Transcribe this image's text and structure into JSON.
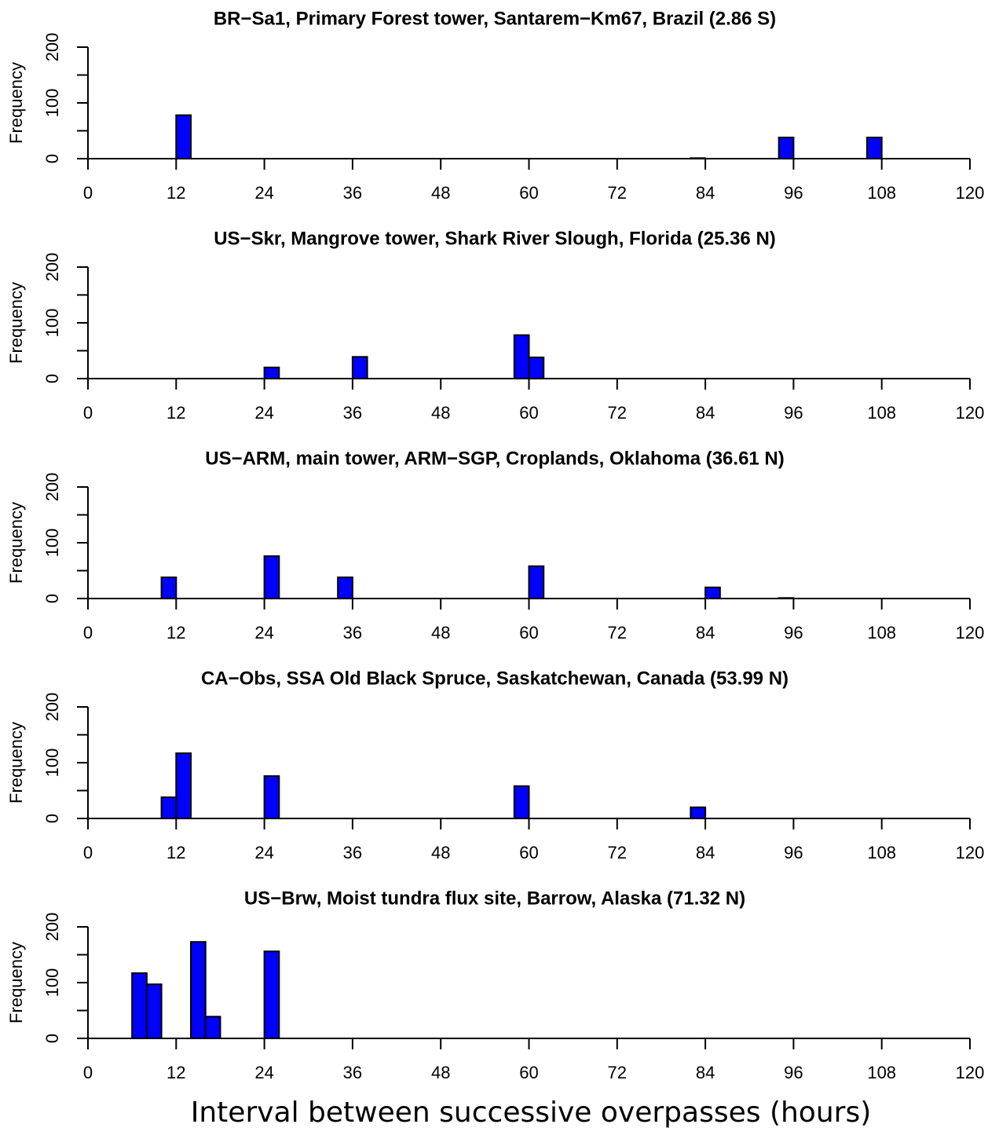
{
  "xlabel": "Interval between successive overpasses (hours)",
  "chart_data": [
    {
      "type": "histogram",
      "title": "BR−Sa1, Primary Forest tower, Santarem−Km67, Brazil (2.86 S)",
      "ylabel": "Frequency",
      "color": "#0000ff",
      "bins": [
        12,
        14,
        16,
        18,
        20,
        22,
        24,
        26,
        28,
        30,
        32,
        34,
        36,
        38,
        40,
        42,
        44,
        46,
        48,
        50,
        52,
        54,
        56,
        58,
        60,
        62,
        64,
        66,
        68,
        70,
        72,
        74,
        76,
        78,
        80,
        82,
        84,
        86,
        88,
        90,
        92,
        94,
        96,
        98,
        100,
        102,
        104,
        106,
        108
      ],
      "values": [
        78,
        0,
        0,
        0,
        0,
        0,
        0,
        0,
        0,
        0,
        0,
        0,
        0,
        0,
        0,
        0,
        0,
        0,
        0,
        0,
        0,
        0,
        0,
        0,
        0,
        0,
        0,
        0,
        0,
        0,
        0,
        0,
        0,
        0,
        0,
        1,
        0,
        0,
        0,
        0,
        0,
        38,
        0,
        0,
        0,
        0,
        0,
        38
      ],
      "xlim": [
        0,
        120
      ],
      "xticks": [
        0,
        12,
        24,
        36,
        48,
        60,
        72,
        84,
        96,
        108,
        120
      ],
      "ylim": [
        0,
        200
      ],
      "yticks": [
        0,
        {
          "value": 50,
          "label": null
        },
        100,
        {
          "value": 150,
          "label": null
        },
        200
      ]
    },
    {
      "type": "histogram",
      "title": "US−Skr, Mangrove tower, Shark River Slough, Florida (25.36 N)",
      "ylabel": "Frequency",
      "color": "#0000ff",
      "bins": [
        24,
        26,
        28,
        30,
        32,
        34,
        36,
        38,
        40,
        42,
        44,
        46,
        48,
        50,
        52,
        54,
        56,
        58,
        60,
        62
      ],
      "values": [
        20,
        0,
        0,
        0,
        0,
        0,
        39,
        0,
        0,
        0,
        0,
        0,
        0,
        0,
        0,
        0,
        0,
        78,
        38
      ],
      "xlim": [
        0,
        120
      ],
      "xticks": [
        0,
        12,
        24,
        36,
        48,
        60,
        72,
        84,
        96,
        108,
        120
      ],
      "ylim": [
        0,
        200
      ],
      "yticks": [
        0,
        {
          "value": 50,
          "label": null
        },
        100,
        {
          "value": 150,
          "label": null
        },
        200
      ]
    },
    {
      "type": "histogram",
      "title": "US−ARM, main tower, ARM−SGP, Croplands, Oklahoma (36.61 N)",
      "ylabel": "Frequency",
      "color": "#0000ff",
      "bins": [
        10,
        12,
        14,
        16,
        18,
        20,
        22,
        24,
        26,
        28,
        30,
        32,
        34,
        36,
        38,
        40,
        42,
        44,
        46,
        48,
        50,
        52,
        54,
        56,
        58,
        60,
        62,
        64,
        66,
        68,
        70,
        72,
        74,
        76,
        78,
        80,
        82,
        84,
        86,
        88,
        90,
        92,
        94,
        96
      ],
      "values": [
        38,
        0,
        0,
        0,
        0,
        0,
        0,
        76,
        0,
        0,
        0,
        0,
        38,
        0,
        0,
        0,
        0,
        0,
        0,
        0,
        0,
        0,
        0,
        0,
        0,
        58,
        0,
        0,
        0,
        0,
        0,
        0,
        0,
        0,
        0,
        0,
        0,
        20,
        0,
        0,
        0,
        0,
        1
      ],
      "xlim": [
        0,
        120
      ],
      "xticks": [
        0,
        12,
        24,
        36,
        48,
        60,
        72,
        84,
        96,
        108,
        120
      ],
      "ylim": [
        0,
        200
      ],
      "yticks": [
        0,
        {
          "value": 50,
          "label": null
        },
        100,
        {
          "value": 150,
          "label": null
        },
        200
      ]
    },
    {
      "type": "histogram",
      "title": "CA−Obs, SSA Old Black Spruce, Saskatchewan, Canada (53.99 N)",
      "ylabel": "Frequency",
      "color": "#0000ff",
      "bins": [
        10,
        12,
        14,
        16,
        18,
        20,
        22,
        24,
        26,
        28,
        30,
        32,
        34,
        36,
        38,
        40,
        42,
        44,
        46,
        48,
        50,
        52,
        54,
        56,
        58,
        60,
        62,
        64,
        66,
        68,
        70,
        72,
        74,
        76,
        78,
        80,
        82,
        84
      ],
      "values": [
        38,
        117,
        0,
        0,
        0,
        0,
        0,
        76,
        0,
        0,
        0,
        0,
        0,
        0,
        0,
        0,
        0,
        0,
        0,
        0,
        0,
        0,
        0,
        0,
        58,
        0,
        0,
        0,
        0,
        0,
        0,
        0,
        0,
        0,
        0,
        0,
        20
      ],
      "xlim": [
        0,
        120
      ],
      "xticks": [
        0,
        12,
        24,
        36,
        48,
        60,
        72,
        84,
        96,
        108,
        120
      ],
      "ylim": [
        0,
        200
      ],
      "yticks": [
        0,
        {
          "value": 50,
          "label": null
        },
        100,
        {
          "value": 150,
          "label": null
        },
        200
      ]
    },
    {
      "type": "histogram",
      "title": "US−Brw, Moist tundra flux site, Barrow, Alaska (71.32 N)",
      "ylabel": "Frequency",
      "color": "#0000ff",
      "bins": [
        6,
        8,
        10,
        12,
        14,
        16,
        18,
        20,
        22,
        24,
        26
      ],
      "values": [
        117,
        97,
        0,
        0,
        173,
        39,
        0,
        0,
        0,
        156
      ],
      "xlim": [
        0,
        120
      ],
      "xticks": [
        0,
        12,
        24,
        36,
        48,
        60,
        72,
        84,
        96,
        108,
        120
      ],
      "ylim": [
        0,
        200
      ],
      "yticks": [
        0,
        {
          "value": 50,
          "label": null
        },
        100,
        {
          "value": 150,
          "label": null
        },
        200
      ]
    }
  ]
}
